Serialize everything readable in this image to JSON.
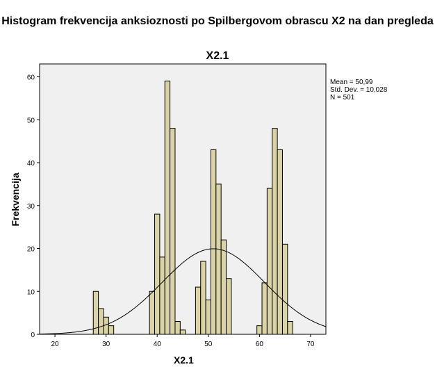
{
  "chart_data": {
    "type": "bar",
    "title": "Histogram frekvencija anksioznosti po Spilbergovom obrascu X2 na dan pregleda",
    "subtitle": "X2.1",
    "xlabel": "X2.1",
    "ylabel": "Frekvencija",
    "xlim": [
      17,
      73
    ],
    "ylim": [
      0,
      63
    ],
    "xticks": [
      20,
      30,
      40,
      50,
      60,
      70
    ],
    "yticks": [
      0,
      10,
      20,
      30,
      40,
      50,
      60
    ],
    "bin_width": 1,
    "x": [
      28,
      29,
      30,
      31,
      39,
      40,
      41,
      42,
      43,
      44,
      45,
      48,
      49,
      50,
      51,
      52,
      53,
      54,
      60,
      61,
      62,
      63,
      64,
      65,
      66
    ],
    "values": [
      10,
      6,
      4,
      2,
      10,
      28,
      18,
      59,
      48,
      3,
      1,
      11,
      17,
      8,
      43,
      35,
      22,
      13,
      2,
      12,
      34,
      48,
      43,
      21,
      3
    ],
    "normal_curve": {
      "mean": 50.99,
      "sd": 10.028,
      "n": 501
    },
    "stats": [
      "Mean = 50,99",
      "Std. Dev. = 10,028",
      "N = 501"
    ],
    "grid": false,
    "bar_color": "#d9d3a6",
    "bar_edge_color": "#000000",
    "plot_bg": "#f0f0f0",
    "legend_position": "right"
  }
}
